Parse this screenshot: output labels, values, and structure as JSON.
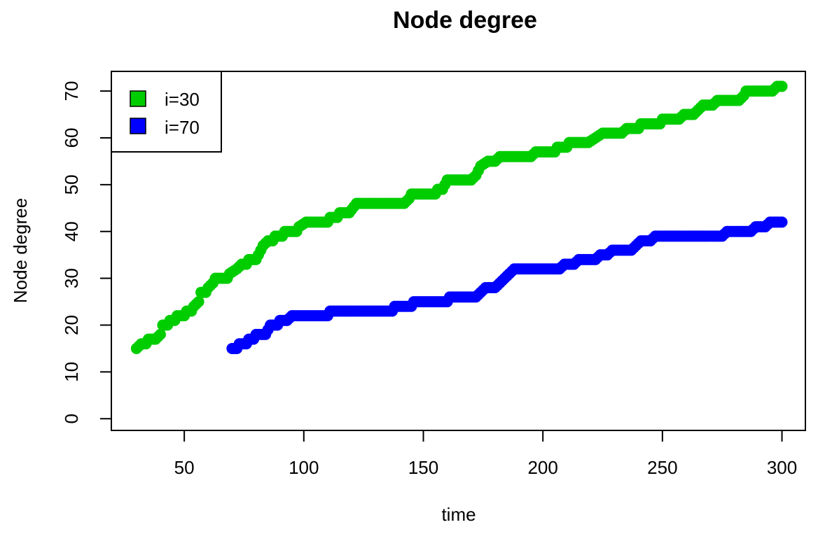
{
  "chart_data": {
    "type": "scatter",
    "title": "Node degree",
    "xlabel": "time",
    "ylabel": "Node degree",
    "xlim": [
      19.5,
      309.8
    ],
    "ylim": [
      -2.5,
      74.2
    ],
    "xticks": [
      50,
      100,
      150,
      200,
      250,
      300
    ],
    "yticks": [
      0,
      10,
      20,
      30,
      40,
      50,
      60,
      70
    ],
    "grid": false,
    "legend_position": "top-left",
    "series": [
      {
        "name": "i=30",
        "color": "#00cd00",
        "points": [
          [
            30,
            15
          ],
          [
            32,
            16
          ],
          [
            34,
            16
          ],
          [
            35,
            17
          ],
          [
            38,
            17
          ],
          [
            40,
            18
          ],
          [
            41,
            20
          ],
          [
            43,
            20
          ],
          [
            44,
            21
          ],
          [
            46,
            21
          ],
          [
            47,
            22
          ],
          [
            50,
            22
          ],
          [
            51,
            23
          ],
          [
            53,
            23
          ],
          [
            54,
            24
          ],
          [
            56,
            25
          ],
          [
            57,
            27
          ],
          [
            59,
            27
          ],
          [
            60,
            28
          ],
          [
            62,
            29
          ],
          [
            63,
            30
          ],
          [
            67,
            30
          ],
          [
            68,
            30
          ],
          [
            69,
            31
          ],
          [
            72,
            32
          ],
          [
            74,
            33
          ],
          [
            76,
            33
          ],
          [
            77,
            34
          ],
          [
            80,
            34
          ],
          [
            81,
            35
          ],
          [
            82,
            36
          ],
          [
            83,
            37
          ],
          [
            85,
            38
          ],
          [
            87,
            38
          ],
          [
            88,
            39
          ],
          [
            91,
            39
          ],
          [
            92,
            40
          ],
          [
            97,
            40
          ],
          [
            98,
            41
          ],
          [
            101,
            42
          ],
          [
            110,
            42
          ],
          [
            111,
            43
          ],
          [
            114,
            43
          ],
          [
            115,
            44
          ],
          [
            119,
            44
          ],
          [
            122,
            46
          ],
          [
            142,
            46
          ],
          [
            144,
            47
          ],
          [
            145,
            48
          ],
          [
            155,
            48
          ],
          [
            156,
            49
          ],
          [
            158,
            49
          ],
          [
            160,
            51
          ],
          [
            170,
            51
          ],
          [
            172,
            52
          ],
          [
            174,
            54
          ],
          [
            177,
            55
          ],
          [
            180,
            55
          ],
          [
            182,
            56
          ],
          [
            195,
            56
          ],
          [
            197,
            57
          ],
          [
            205,
            57
          ],
          [
            206,
            58
          ],
          [
            210,
            58
          ],
          [
            211,
            59
          ],
          [
            219,
            59
          ],
          [
            222,
            60
          ],
          [
            225,
            61
          ],
          [
            233,
            61
          ],
          [
            235,
            62
          ],
          [
            240,
            62
          ],
          [
            241,
            63
          ],
          [
            249,
            63
          ],
          [
            250,
            64
          ],
          [
            257,
            64
          ],
          [
            259,
            65
          ],
          [
            263,
            65
          ],
          [
            265,
            66
          ],
          [
            267,
            67
          ],
          [
            271,
            67
          ],
          [
            273,
            68
          ],
          [
            282,
            68
          ],
          [
            284,
            69
          ],
          [
            285,
            70
          ],
          [
            296,
            70
          ],
          [
            298,
            71
          ],
          [
            300,
            71
          ]
        ]
      },
      {
        "name": "i=70",
        "color": "#0000ff",
        "points": [
          [
            70,
            15
          ],
          [
            72,
            15
          ],
          [
            73,
            16
          ],
          [
            76,
            16
          ],
          [
            77,
            17
          ],
          [
            79,
            17
          ],
          [
            80,
            18
          ],
          [
            84,
            18
          ],
          [
            86,
            20
          ],
          [
            89,
            20
          ],
          [
            90,
            21
          ],
          [
            93,
            21
          ],
          [
            95,
            22
          ],
          [
            110,
            22
          ],
          [
            111,
            23
          ],
          [
            137,
            23
          ],
          [
            138,
            24
          ],
          [
            145,
            24
          ],
          [
            146,
            25
          ],
          [
            160,
            25
          ],
          [
            161,
            26
          ],
          [
            172,
            26
          ],
          [
            174,
            27
          ],
          [
            176,
            28
          ],
          [
            180,
            28
          ],
          [
            182,
            29
          ],
          [
            184,
            30
          ],
          [
            186,
            31
          ],
          [
            188,
            32
          ],
          [
            207,
            32
          ],
          [
            209,
            33
          ],
          [
            213,
            33
          ],
          [
            215,
            34
          ],
          [
            222,
            34
          ],
          [
            224,
            35
          ],
          [
            227,
            35
          ],
          [
            229,
            36
          ],
          [
            237,
            36
          ],
          [
            239,
            37
          ],
          [
            241,
            38
          ],
          [
            245,
            38
          ],
          [
            247,
            39
          ],
          [
            275,
            39
          ],
          [
            277,
            40
          ],
          [
            287,
            40
          ],
          [
            289,
            41
          ],
          [
            293,
            41
          ],
          [
            295,
            42
          ],
          [
            300,
            42
          ]
        ]
      }
    ]
  }
}
